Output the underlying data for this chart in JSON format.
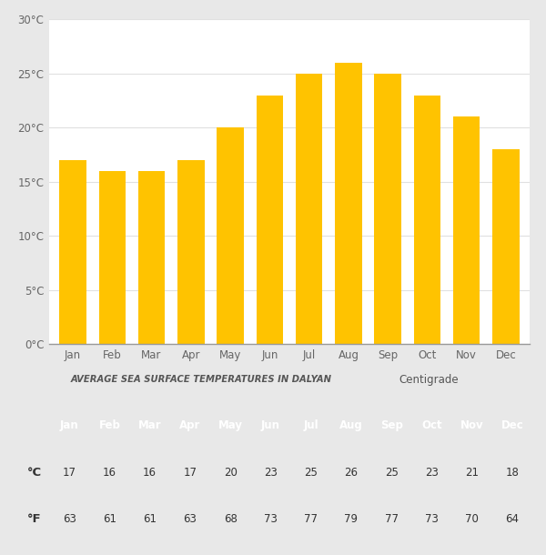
{
  "months": [
    "Jan",
    "Feb",
    "Mar",
    "Apr",
    "May",
    "Jun",
    "Jul",
    "Aug",
    "Sep",
    "Oct",
    "Nov",
    "Dec"
  ],
  "celsius": [
    17,
    16,
    16,
    17,
    20,
    23,
    25,
    26,
    25,
    23,
    21,
    18
  ],
  "fahrenheit": [
    63,
    61,
    61,
    63,
    68,
    73,
    77,
    79,
    77,
    73,
    70,
    64
  ],
  "bar_color": "#FFC300",
  "yticks": [
    0,
    5,
    10,
    15,
    20,
    25,
    30
  ],
  "ylim": [
    0,
    30
  ],
  "chart_title": "AVERAGE SEA SURFACE TEMPERATURES IN DALYAN",
  "legend_label": "Centigrade",
  "bg_color": "#e8e8e8",
  "chart_bg": "#ffffff",
  "header_color": "#62aee0",
  "row_celsius_color": "#FFC300",
  "row_fahrenheit_color": "#FFEE00",
  "header_text_color": "#ffffff",
  "data_text_color": "#333333",
  "title_color": "#555555",
  "axis_label_color": "#666666",
  "grid_color": "#e0e0e0",
  "table_bg": "#ffffff",
  "separator_color": "#cccccc"
}
